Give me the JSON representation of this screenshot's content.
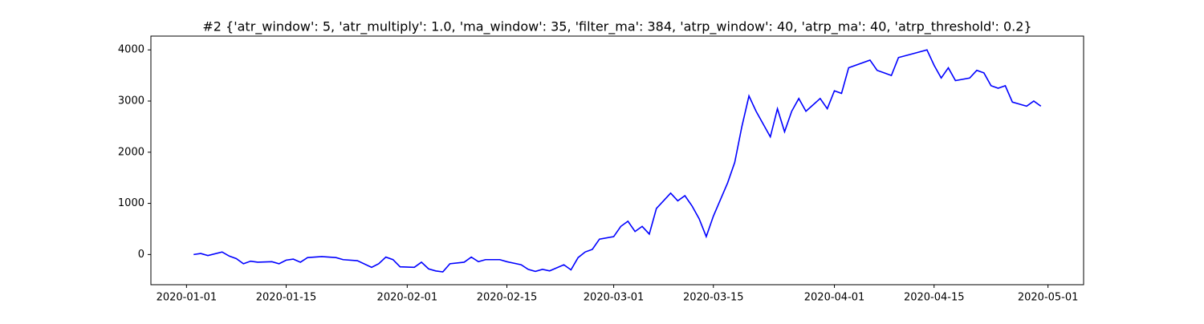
{
  "chart_data": {
    "type": "line",
    "title": "#2 {'atr_window': 5, 'atr_multiply': 1.0, 'ma_window': 35, 'filter_ma': 384, 'atrp_window': 40, 'atrp_ma': 40, 'atrp_threshold': 0.2}",
    "x": [
      "2020-01-02",
      "2020-01-03",
      "2020-01-04",
      "2020-01-06",
      "2020-01-07",
      "2020-01-08",
      "2020-01-09",
      "2020-01-10",
      "2020-01-11",
      "2020-01-13",
      "2020-01-14",
      "2020-01-15",
      "2020-01-16",
      "2020-01-17",
      "2020-01-18",
      "2020-01-20",
      "2020-01-22",
      "2020-01-23",
      "2020-01-25",
      "2020-01-27",
      "2020-01-28",
      "2020-01-29",
      "2020-01-30",
      "2020-01-31",
      "2020-02-02",
      "2020-02-03",
      "2020-02-04",
      "2020-02-05",
      "2020-02-06",
      "2020-02-07",
      "2020-02-09",
      "2020-02-10",
      "2020-02-11",
      "2020-02-12",
      "2020-02-14",
      "2020-02-15",
      "2020-02-17",
      "2020-02-18",
      "2020-02-19",
      "2020-02-20",
      "2020-02-21",
      "2020-02-23",
      "2020-02-24",
      "2020-02-25",
      "2020-02-26",
      "2020-02-27",
      "2020-02-28",
      "2020-03-01",
      "2020-03-02",
      "2020-03-03",
      "2020-03-04",
      "2020-03-05",
      "2020-03-06",
      "2020-03-07",
      "2020-03-09",
      "2020-03-10",
      "2020-03-11",
      "2020-03-12",
      "2020-03-13",
      "2020-03-14",
      "2020-03-15",
      "2020-03-17",
      "2020-03-18",
      "2020-03-19",
      "2020-03-20",
      "2020-03-21",
      "2020-03-23",
      "2020-03-24",
      "2020-03-25",
      "2020-03-26",
      "2020-03-27",
      "2020-03-28",
      "2020-03-30",
      "2020-03-31",
      "2020-04-01",
      "2020-04-02",
      "2020-04-03",
      "2020-04-06",
      "2020-04-07",
      "2020-04-08",
      "2020-04-09",
      "2020-04-10",
      "2020-04-14",
      "2020-04-15",
      "2020-04-16",
      "2020-04-17",
      "2020-04-18",
      "2020-04-20",
      "2020-04-21",
      "2020-04-22",
      "2020-04-23",
      "2020-04-24",
      "2020-04-25",
      "2020-04-26",
      "2020-04-28",
      "2020-04-29",
      "2020-04-30"
    ],
    "series": [
      {
        "color": "#0000ff",
        "values": [
          0,
          20,
          -20,
          50,
          -30,
          -80,
          -180,
          -130,
          -150,
          -140,
          -180,
          -110,
          -90,
          -150,
          -60,
          -40,
          -60,
          -100,
          -120,
          -250,
          -180,
          -50,
          -100,
          -240,
          -250,
          -150,
          -280,
          -320,
          -340,
          -180,
          -150,
          -50,
          -140,
          -100,
          -100,
          -140,
          -200,
          -290,
          -330,
          -290,
          -320,
          -200,
          -300,
          -60,
          50,
          100,
          300,
          350,
          550,
          650,
          450,
          550,
          400,
          900,
          1200,
          1050,
          1150,
          950,
          700,
          350,
          750,
          1400,
          1800,
          2500,
          3100,
          2800,
          2300,
          2850,
          2400,
          2800,
          3050,
          2800,
          3050,
          2850,
          3200,
          3150,
          3650,
          3800,
          3600,
          3550,
          3500,
          3850,
          4000,
          3700,
          3450,
          3650,
          3400,
          3450,
          3600,
          3550,
          3300,
          3250,
          3300,
          2980,
          2900,
          3000,
          2900
        ]
      }
    ],
    "xlim": [
      "2019-12-27",
      "2020-05-06"
    ],
    "xticks": [
      "2020-01-01",
      "2020-01-15",
      "2020-02-01",
      "2020-02-15",
      "2020-03-01",
      "2020-03-15",
      "2020-04-01",
      "2020-04-15",
      "2020-05-01"
    ],
    "ylim": [
      -590,
      4270
    ],
    "yticks": [
      0,
      1000,
      2000,
      3000,
      4000
    ]
  }
}
